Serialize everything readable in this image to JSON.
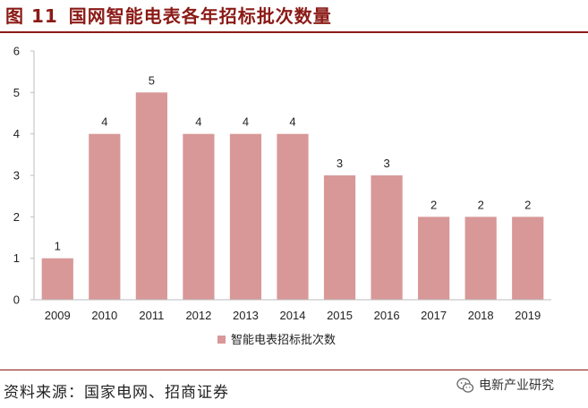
{
  "header": {
    "figure_number": "图 11",
    "title": "国网智能电表各年招标批次数量"
  },
  "chart_data": {
    "type": "bar",
    "title": "国网智能电表各年招标批次数量",
    "xlabel": "",
    "ylabel": "",
    "categories": [
      "2009",
      "2010",
      "2011",
      "2012",
      "2013",
      "2014",
      "2015",
      "2016",
      "2017",
      "2018",
      "2019"
    ],
    "series": [
      {
        "name": "智能电表招标批次数",
        "values": [
          1,
          4,
          5,
          4,
          4,
          4,
          3,
          3,
          2,
          2,
          2
        ]
      }
    ],
    "ylim": [
      0,
      6
    ],
    "yticks": [
      0,
      1,
      2,
      3,
      4,
      5,
      6
    ],
    "grid": false,
    "legend": "bottom-center",
    "bar_color": "#d89898"
  },
  "legend": {
    "label": "智能电表招标批次数"
  },
  "footer": {
    "source": "资料来源：国家电网、招商证券",
    "brand": "电新产业研究"
  },
  "icons": {
    "brand_icon": "wechat-icon"
  },
  "colors": {
    "accent": "#8b1a16",
    "bar": "#d89898"
  }
}
